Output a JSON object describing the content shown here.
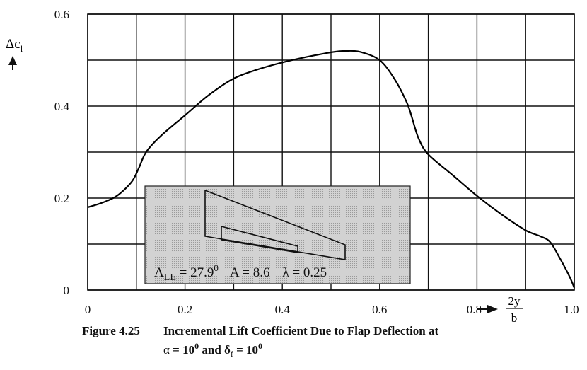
{
  "chart_data": {
    "type": "line",
    "xlim": [
      0,
      1.0
    ],
    "ylim": [
      0,
      0.6
    ],
    "x_ticks": [
      "0",
      "0.2",
      "0.4",
      "0.6",
      "0.8",
      "1.0"
    ],
    "y_ticks": [
      "0",
      "0.2",
      "0.4",
      "0.6"
    ],
    "x_minor_grid": [
      0.1,
      0.3,
      0.5,
      0.7,
      0.9
    ],
    "y_minor_grid": [
      0.1,
      0.3,
      0.5
    ],
    "grid": true,
    "ylabel_main": "Δc",
    "ylabel_sub": "l",
    "xlabel_num": "2y",
    "xlabel_den": "b",
    "series": [
      {
        "x": [
          0.0,
          0.03,
          0.06,
          0.09,
          0.105,
          0.12,
          0.15,
          0.2,
          0.25,
          0.3,
          0.35,
          0.4,
          0.45,
          0.5,
          0.53,
          0.56,
          0.6,
          0.63,
          0.655,
          0.665,
          0.68,
          0.7,
          0.75,
          0.8,
          0.85,
          0.9,
          0.93,
          0.95,
          0.97,
          0.99,
          1.0
        ],
        "y": [
          0.18,
          0.19,
          0.205,
          0.235,
          0.265,
          0.3,
          0.335,
          0.38,
          0.425,
          0.46,
          0.48,
          0.495,
          0.507,
          0.517,
          0.52,
          0.518,
          0.5,
          0.46,
          0.41,
          0.38,
          0.33,
          0.295,
          0.25,
          0.205,
          0.165,
          0.13,
          0.117,
          0.105,
          0.07,
          0.03,
          0.005
        ]
      }
    ]
  },
  "inset": {
    "sweep_symbol": "Λ",
    "sweep_sub": "LE",
    "sweep_text": " = 27.9",
    "sweep_sup": "0",
    "aspect_text": "A = 8.6",
    "taper_text": "λ = 0.25"
  },
  "caption": {
    "number": "Figure 4.25",
    "line1": "Incremental Lift Coefficient Due to Flap Deflection at",
    "alpha_sym": "α",
    "alpha_eq": " = 10",
    "alpha_sup": "0",
    "and_text": " and δ",
    "delta_sub": "f",
    "delta_eq": " = 10",
    "delta_sup": "0"
  }
}
